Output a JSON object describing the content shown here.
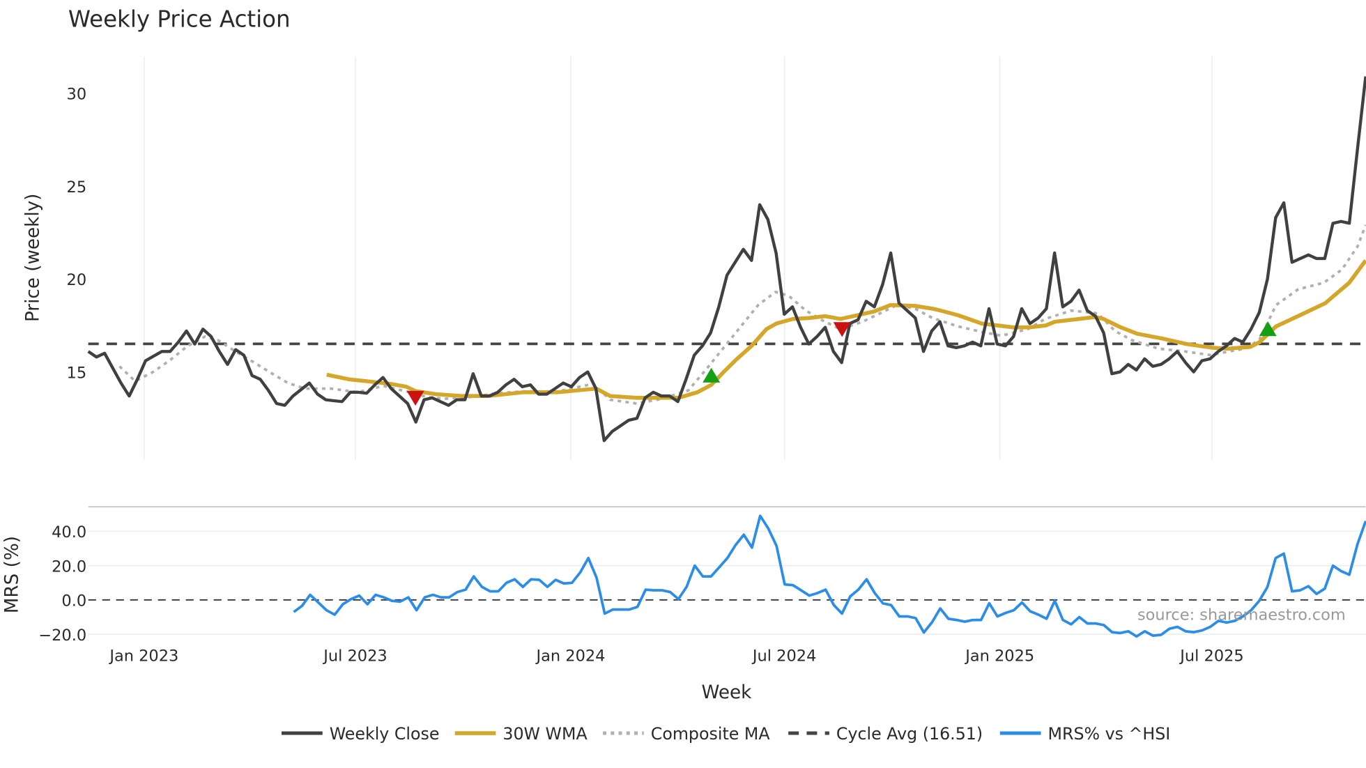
{
  "chart_data": {
    "type": "line",
    "title": "Weekly Price Action",
    "xlabel": "Week",
    "x_units": "weeks since 2023-01-01",
    "xlim": [
      -6.8,
      148.6
    ],
    "x_ticks": [
      {
        "label": "Jan 2023",
        "week": 0
      },
      {
        "label": "Jul 2023",
        "week": 25.7
      },
      {
        "label": "Jan 2024",
        "week": 51.9
      },
      {
        "label": "Jul 2024",
        "week": 77.9
      },
      {
        "label": "Jan 2025",
        "week": 104.1
      },
      {
        "label": "Jul 2025",
        "week": 129.9
      }
    ],
    "price_panel": {
      "ylabel": "Price (weekly)",
      "ylim": [
        10.27,
        31.97
      ],
      "y_ticks": [
        {
          "label": "15",
          "value": 15
        },
        {
          "label": "20",
          "value": 20
        },
        {
          "label": "25",
          "value": 25
        },
        {
          "label": "30",
          "value": 30
        }
      ],
      "grid": "vertical",
      "cycle_avg": 16.51
    },
    "mrs_panel": {
      "ylabel": "MRS (%)",
      "ylim": [
        -25.9,
        54.3
      ],
      "y_ticks": [
        {
          "label": "−20.0",
          "value": -20
        },
        {
          "label": "0.0",
          "value": 0
        },
        {
          "label": "20.0",
          "value": 20
        },
        {
          "label": "40.0",
          "value": 40
        }
      ],
      "zero_line": 0
    },
    "series": [
      {
        "name": "Weekly Close",
        "color": "#404040",
        "panel": "price",
        "x_start": -6.8,
        "x_end": 148.6,
        "values": [
          16.1,
          15.8,
          16.0,
          15.2,
          14.4,
          13.7,
          14.6,
          15.6,
          15.85,
          16.1,
          16.1,
          16.6,
          17.2,
          16.5,
          17.3,
          16.9,
          16.1,
          15.4,
          16.2,
          15.9,
          14.8,
          14.6,
          14.0,
          13.3,
          13.2,
          13.7,
          14.05,
          14.4,
          13.8,
          13.5,
          13.45,
          13.4,
          13.9,
          13.9,
          13.85,
          14.3,
          14.7,
          14.1,
          13.7,
          13.3,
          12.3,
          13.5,
          13.6,
          13.4,
          13.2,
          13.5,
          13.5,
          14.9,
          13.7,
          13.7,
          13.9,
          14.3,
          14.6,
          14.2,
          14.3,
          13.8,
          13.8,
          14.1,
          14.4,
          14.2,
          14.7,
          15.0,
          14.1,
          11.3,
          11.8,
          12.1,
          12.4,
          12.5,
          13.6,
          13.9,
          13.7,
          13.7,
          13.4,
          14.6,
          15.9,
          16.4,
          17.1,
          18.5,
          20.2,
          20.9,
          21.6,
          21.0,
          24.0,
          23.2,
          21.4,
          18.1,
          18.5,
          17.4,
          16.5,
          16.9,
          17.4,
          16.1,
          15.5,
          17.6,
          17.8,
          18.8,
          18.5,
          19.7,
          21.4,
          18.7,
          18.3,
          17.9,
          16.1,
          17.2,
          17.7,
          16.4,
          16.3,
          16.4,
          16.6,
          16.4,
          18.4,
          16.5,
          16.4,
          16.9,
          18.4,
          17.6,
          17.9,
          18.4,
          21.4,
          18.5,
          18.8,
          19.4,
          18.3,
          18.0,
          17.1,
          14.9,
          15.0,
          15.4,
          15.1,
          15.7,
          15.3,
          15.4,
          15.7,
          16.1,
          15.5,
          15.0,
          15.6,
          15.7,
          16.1,
          16.4,
          16.8,
          16.6,
          17.3,
          18.2,
          20.0,
          23.3,
          24.1,
          20.9,
          21.1,
          21.3,
          21.1,
          21.1,
          23.0,
          23.1,
          23.0,
          27.0,
          30.9
        ]
      },
      {
        "name": "30W WMA",
        "color": "#d4a62a",
        "panel": "price",
        "points": [
          [
            22.2,
            14.85
          ],
          [
            24.9,
            14.6
          ],
          [
            27.0,
            14.5
          ],
          [
            30.0,
            14.35
          ],
          [
            31.9,
            14.2
          ],
          [
            33.0,
            13.97
          ],
          [
            35.5,
            13.8
          ],
          [
            38.7,
            13.7
          ],
          [
            41.8,
            13.7
          ],
          [
            46.1,
            13.9
          ],
          [
            50.3,
            13.9
          ],
          [
            55.0,
            14.1
          ],
          [
            56.7,
            13.7
          ],
          [
            59.9,
            13.6
          ],
          [
            63.0,
            13.6
          ],
          [
            65.0,
            13.6
          ],
          [
            67.3,
            13.9
          ],
          [
            69.0,
            14.3
          ],
          [
            70.4,
            14.95
          ],
          [
            72.0,
            15.65
          ],
          [
            73.9,
            16.4
          ],
          [
            75.7,
            17.3
          ],
          [
            76.9,
            17.6
          ],
          [
            78.9,
            17.85
          ],
          [
            80.9,
            17.9
          ],
          [
            82.8,
            18.0
          ],
          [
            84.7,
            17.85
          ],
          [
            86.8,
            18.05
          ],
          [
            88.8,
            18.25
          ],
          [
            90.8,
            18.6
          ],
          [
            93.8,
            18.55
          ],
          [
            95.9,
            18.4
          ],
          [
            96.9,
            18.3
          ],
          [
            99.0,
            18.05
          ],
          [
            101.9,
            17.6
          ],
          [
            103.8,
            17.5
          ],
          [
            105.7,
            17.4
          ],
          [
            107.7,
            17.4
          ],
          [
            109.7,
            17.5
          ],
          [
            110.8,
            17.7
          ],
          [
            113.7,
            17.85
          ],
          [
            115.7,
            17.95
          ],
          [
            116.7,
            17.85
          ],
          [
            118.8,
            17.4
          ],
          [
            120.8,
            17.05
          ],
          [
            123.8,
            16.8
          ],
          [
            126.8,
            16.5
          ],
          [
            129.9,
            16.3
          ],
          [
            131.9,
            16.25
          ],
          [
            134.6,
            16.35
          ],
          [
            135.7,
            16.6
          ],
          [
            137.7,
            17.45
          ],
          [
            140.6,
            18.05
          ],
          [
            143.7,
            18.7
          ],
          [
            146.6,
            19.8
          ],
          [
            148.6,
            21.0
          ]
        ]
      },
      {
        "name": "Composite MA",
        "color": "#b0b0b0",
        "panel": "price",
        "points": [
          [
            -3.0,
            15.3
          ],
          [
            -1.1,
            14.5
          ],
          [
            1.1,
            15.0
          ],
          [
            3.2,
            15.65
          ],
          [
            5.3,
            16.4
          ],
          [
            7.4,
            16.9
          ],
          [
            9.0,
            16.7
          ],
          [
            11.1,
            16.1
          ],
          [
            13.2,
            15.55
          ],
          [
            15.4,
            14.95
          ],
          [
            17.5,
            14.4
          ],
          [
            19.6,
            14.1
          ],
          [
            22.8,
            14.1
          ],
          [
            26.0,
            13.9
          ],
          [
            29.1,
            14.25
          ],
          [
            32.3,
            13.9
          ],
          [
            34.4,
            13.65
          ],
          [
            36.5,
            13.55
          ],
          [
            39.7,
            13.65
          ],
          [
            42.9,
            13.85
          ],
          [
            46.1,
            13.95
          ],
          [
            50.3,
            13.95
          ],
          [
            54.6,
            14.35
          ],
          [
            56.7,
            13.5
          ],
          [
            59.9,
            13.3
          ],
          [
            63.0,
            13.55
          ],
          [
            66.2,
            14.0
          ],
          [
            68.3,
            15.1
          ],
          [
            70.4,
            16.25
          ],
          [
            72.6,
            17.45
          ],
          [
            74.7,
            18.6
          ],
          [
            76.8,
            19.3
          ],
          [
            78.4,
            19.1
          ],
          [
            80.5,
            18.3
          ],
          [
            82.6,
            17.75
          ],
          [
            84.7,
            17.3
          ],
          [
            87.4,
            17.7
          ],
          [
            89.5,
            18.15
          ],
          [
            91.6,
            18.6
          ],
          [
            93.8,
            18.4
          ],
          [
            95.9,
            17.9
          ],
          [
            99.0,
            17.45
          ],
          [
            101.9,
            17.15
          ],
          [
            104.3,
            16.95
          ],
          [
            107.5,
            17.3
          ],
          [
            109.6,
            17.85
          ],
          [
            112.8,
            18.3
          ],
          [
            116.0,
            18.15
          ],
          [
            118.1,
            17.2
          ],
          [
            120.2,
            16.7
          ],
          [
            123.4,
            16.25
          ],
          [
            126.6,
            16.1
          ],
          [
            129.8,
            15.9
          ],
          [
            131.9,
            16.1
          ],
          [
            134.0,
            16.25
          ],
          [
            135.7,
            16.75
          ],
          [
            137.7,
            18.6
          ],
          [
            140.4,
            19.45
          ],
          [
            143.5,
            19.8
          ],
          [
            145.7,
            20.5
          ],
          [
            147.6,
            21.75
          ],
          [
            148.6,
            22.9
          ]
        ]
      },
      {
        "name": "Cycle Avg (16.51)",
        "color": "#444444",
        "panel": "price",
        "value": 16.51
      },
      {
        "name": "MRS% vs ^HSI",
        "color": "#2b8de8",
        "panel": "mrs",
        "x_start": 18.2,
        "x_end": 148.6,
        "values": [
          -7,
          -3.5,
          3,
          -1.5,
          -6,
          -8.6,
          -2.5,
          0.5,
          2.5,
          -2.5,
          3,
          1.5,
          -0.5,
          -1,
          1.5,
          -6,
          1.5,
          3,
          1.5,
          1.5,
          4.6,
          6,
          13.7,
          7.6,
          5,
          5,
          10,
          12,
          7.6,
          12,
          11.7,
          7.6,
          11.7,
          9.6,
          10,
          16,
          24.4,
          13,
          -8,
          -5.6,
          -5.6,
          -5.6,
          -4,
          6,
          5.6,
          5.6,
          4.6,
          0.5,
          7.6,
          20,
          13.7,
          13.7,
          19,
          24.4,
          32,
          38,
          30.5,
          49,
          41.6,
          31.5,
          9,
          8.6,
          5.6,
          2.5,
          4,
          6,
          -3,
          -8,
          2,
          6,
          12,
          4,
          -2,
          -3,
          -9.6,
          -9.6,
          -10.6,
          -19,
          -13,
          -5,
          -11,
          -11.7,
          -12.7,
          -11.7,
          -11.7,
          -2,
          -9.6,
          -7.6,
          -6,
          -1.5,
          -6.6,
          -8.6,
          -11,
          -0.5,
          -11.7,
          -14.2,
          -10,
          -13.7,
          -13.7,
          -14.7,
          -18.8,
          -19.3,
          -18.3,
          -21.3,
          -18.3,
          -20.8,
          -20.3,
          -16.8,
          -15.7,
          -18.3,
          -18.8,
          -17.8,
          -15.7,
          -12.2,
          -13.2,
          -12.2,
          -9.6,
          -6,
          -0.5,
          7.6,
          24.4,
          27,
          5,
          5.6,
          8,
          3.5,
          6.6,
          20,
          16.8,
          14.7,
          32.5,
          46
        ]
      }
    ],
    "signals": [
      {
        "type": "sell",
        "color": "#cc1111",
        "week": 33.0,
        "value": 13.6
      },
      {
        "type": "buy",
        "color": "#13a013",
        "week": 69.0,
        "value": 14.8
      },
      {
        "type": "sell",
        "color": "#cc1111",
        "week": 84.9,
        "value": 17.3
      },
      {
        "type": "buy",
        "color": "#13a013",
        "week": 136.7,
        "value": 17.3
      }
    ],
    "legend": {
      "placement": "bottom-center",
      "entries": [
        "Weekly Close",
        "30W WMA",
        "Composite MA",
        "Cycle Avg (16.51)",
        "MRS% vs ^HSI"
      ]
    },
    "annotation": "source: sharemaestro.com"
  }
}
